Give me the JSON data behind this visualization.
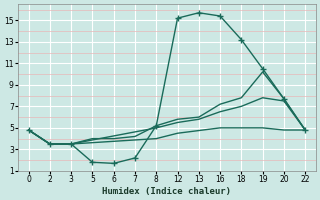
{
  "xlabel": "Humidex (Indice chaleur)",
  "bg_color": "#cde8e4",
  "minor_grid_color": "#e8b8b8",
  "major_grid_color": "#ffffff",
  "line_color": "#1a6b5a",
  "xtick_labels": [
    "0",
    "2",
    "3",
    "5",
    "6",
    "7",
    "8",
    "12",
    "13",
    "16",
    "18",
    "19",
    "20",
    "22"
  ],
  "ytick_labels": [
    "1",
    "3",
    "5",
    "7",
    "9",
    "11",
    "13",
    "15"
  ],
  "ylim": [
    1,
    16.5
  ],
  "lines": [
    {
      "xi": [
        0,
        1,
        2,
        3,
        4,
        5,
        6,
        7,
        8,
        9,
        10,
        11,
        12,
        13
      ],
      "y": [
        4.8,
        3.5,
        3.5,
        1.8,
        1.7,
        2.2,
        5.2,
        15.2,
        15.7,
        15.4,
        13.2,
        10.5,
        7.7,
        4.8
      ],
      "marker": true
    },
    {
      "xi": [
        0,
        1,
        2,
        3,
        4,
        5,
        6,
        7,
        8,
        9,
        10,
        11,
        12,
        13
      ],
      "y": [
        4.8,
        3.5,
        3.5,
        4.0,
        4.0,
        4.2,
        5.2,
        5.8,
        6.0,
        7.2,
        7.8,
        10.2,
        7.7,
        4.8
      ],
      "marker": false
    },
    {
      "xi": [
        0,
        1,
        2,
        6,
        7,
        8,
        9,
        10,
        11,
        12,
        13
      ],
      "y": [
        4.8,
        3.5,
        3.5,
        5.0,
        5.5,
        5.8,
        6.5,
        7.0,
        7.8,
        7.5,
        4.8
      ],
      "marker": false
    },
    {
      "xi": [
        0,
        1,
        2,
        6,
        7,
        9,
        11,
        12,
        13
      ],
      "y": [
        4.8,
        3.5,
        3.5,
        4.0,
        4.5,
        5.0,
        5.0,
        4.8,
        4.8
      ],
      "marker": false
    }
  ]
}
